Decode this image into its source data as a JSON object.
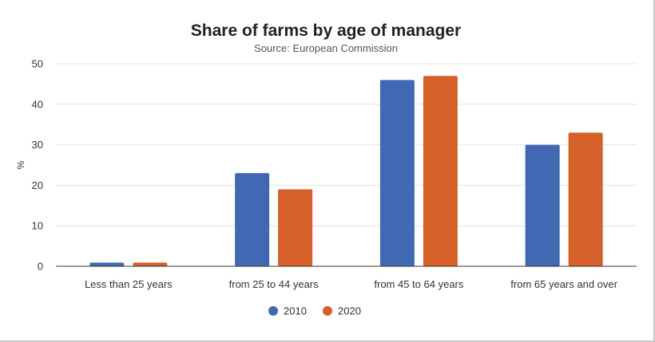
{
  "colors": {
    "series_2010": "#4169b3",
    "series_2020": "#d5602a",
    "grid": "#e4e4e4",
    "axis": "#333333"
  },
  "chart_data": {
    "type": "bar",
    "title": "Share of farms by age of manager",
    "subtitle": "Source: European Commission",
    "xlabel": "",
    "ylabel": "%",
    "ylim": [
      0,
      50
    ],
    "yticks": [
      0,
      10,
      20,
      30,
      40,
      50
    ],
    "grid": true,
    "legend_position": "bottom-center",
    "categories": [
      "Less than 25 years",
      "from 25 to 44 years",
      "from 45 to 64 years",
      "from 65 years and over"
    ],
    "series": [
      {
        "name": "2010",
        "color": "#4169b3",
        "values": [
          0.9,
          23,
          46,
          30
        ]
      },
      {
        "name": "2020",
        "color": "#d5602a",
        "values": [
          0.9,
          19,
          47,
          33
        ]
      }
    ]
  }
}
